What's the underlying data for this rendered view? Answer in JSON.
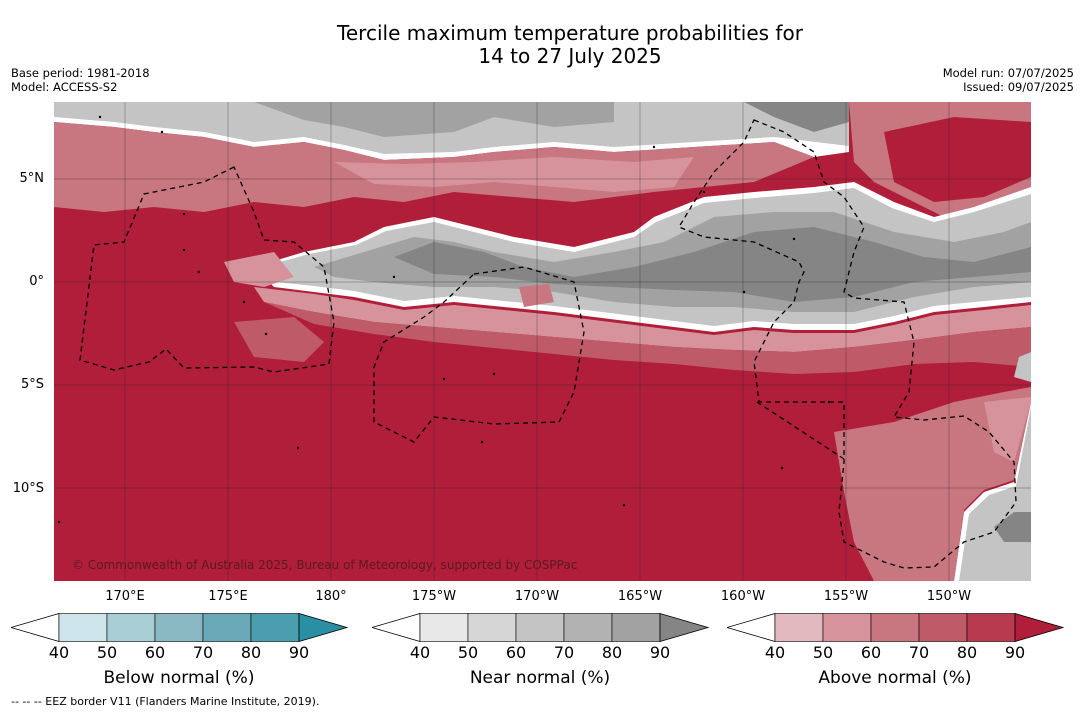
{
  "title_line1": "Tercile maximum temperature probabilities for",
  "title_line2": "14 to 27 July 2025",
  "base_period": "Base period: 1981-2018",
  "model": "Model: ACCESS-S2",
  "model_run": "Model run: 07/07/2025",
  "issued": "Issued: 09/07/2025",
  "lat_labels": [
    "5°N",
    "0°",
    "5°S",
    "10°S"
  ],
  "lon_labels": [
    "170°E",
    "175°E",
    "180°",
    "175°W",
    "170°W",
    "165°W",
    "160°W",
    "155°W",
    "150°W"
  ],
  "copyright": "© Commonwealth of Australia 2025, Bureau of Meteorology, supported by COSPPac",
  "footnote": "-- -- -- EEZ border V11 (Flanders Marine Institute, 2019).",
  "colorbars": [
    {
      "label": "Below normal (%)",
      "ticks": [
        "40",
        "50",
        "60",
        "70",
        "80",
        "90"
      ],
      "colors": [
        "#ffffff",
        "#cde4ea",
        "#a9cdd4",
        "#8ab8c3",
        "#6aa9b7",
        "#4a9eae",
        "#2a8fa3"
      ]
    },
    {
      "label": "Near normal (%)",
      "ticks": [
        "40",
        "50",
        "60",
        "70",
        "80",
        "90"
      ],
      "colors": [
        "#ffffff",
        "#e8e8e8",
        "#d6d6d6",
        "#c4c4c4",
        "#b2b2b2",
        "#a2a2a2",
        "#858585"
      ]
    },
    {
      "label": "Above normal (%)",
      "ticks": [
        "40",
        "50",
        "60",
        "70",
        "80",
        "90"
      ],
      "colors": [
        "#ffffff",
        "#e2b9bf",
        "#d6939c",
        "#c87680",
        "#bf5a68",
        "#b83a4e",
        "#b01e3a"
      ]
    }
  ],
  "map_colors": {
    "above_90": "#b01e3a",
    "above_80": "#b83a4e",
    "above_70": "#bf5a68",
    "above_60": "#c87680",
    "above_50": "#d6939c",
    "near_40": "#e8e8e8",
    "near_50": "#d6d6d6",
    "near_60": "#c4c4c4",
    "near_70": "#b2b2b2",
    "near_80": "#a2a2a2",
    "near_90": "#858585",
    "border": "#ffffff"
  }
}
